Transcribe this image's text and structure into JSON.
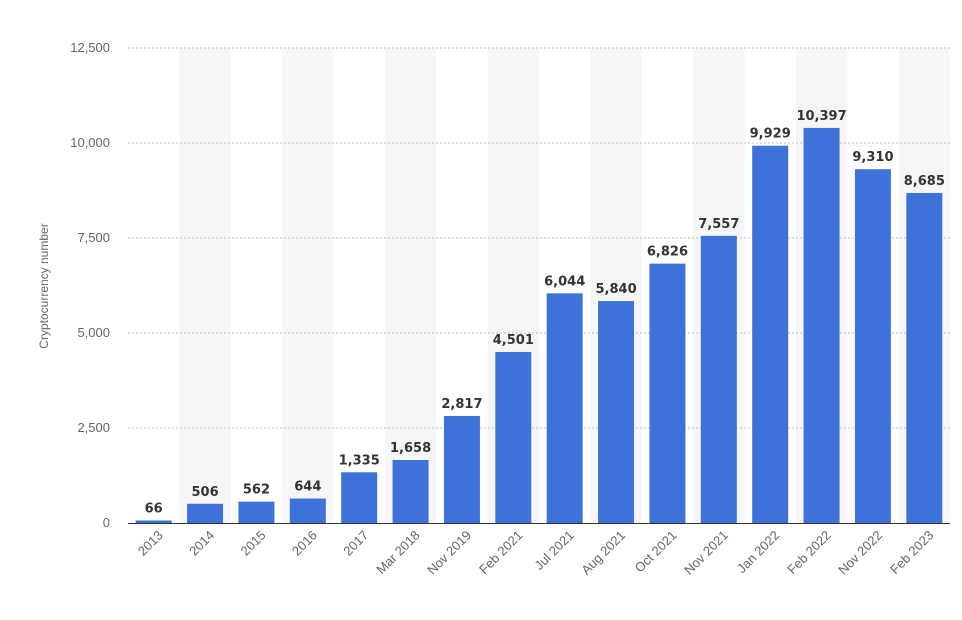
{
  "chart_data": {
    "type": "bar",
    "title": "",
    "xlabel": "",
    "ylabel": "Cryptocurrency number",
    "ylim": [
      0,
      12500
    ],
    "yticks": [
      0,
      2500,
      5000,
      7500,
      10000,
      12500
    ],
    "ytick_labels": [
      "0",
      "2,500",
      "5,000",
      "7,500",
      "10,000",
      "12,500"
    ],
    "grid": true,
    "legend": "none",
    "bar_color": "#3f72d8",
    "categories": [
      "2013",
      "2014",
      "2015",
      "2016",
      "2017",
      "Mar 2018",
      "Nov 2019",
      "Feb 2021",
      "Jul 2021",
      "Aug 2021",
      "Oct 2021",
      "Nov 2021",
      "Jan 2022",
      "Feb 2022",
      "Nov 2022",
      "Feb 2023"
    ],
    "values": [
      66,
      506,
      562,
      644,
      1335,
      1658,
      2817,
      4501,
      6044,
      5840,
      6826,
      7557,
      9929,
      10397,
      9310,
      8685
    ],
    "value_labels": [
      "66",
      "506",
      "562",
      "644",
      "1,335",
      "1,658",
      "2,817",
      "4,501",
      "6,044",
      "5,840",
      "6,826",
      "7,557",
      "9,929",
      "10,397",
      "9,310",
      "8,685"
    ]
  }
}
